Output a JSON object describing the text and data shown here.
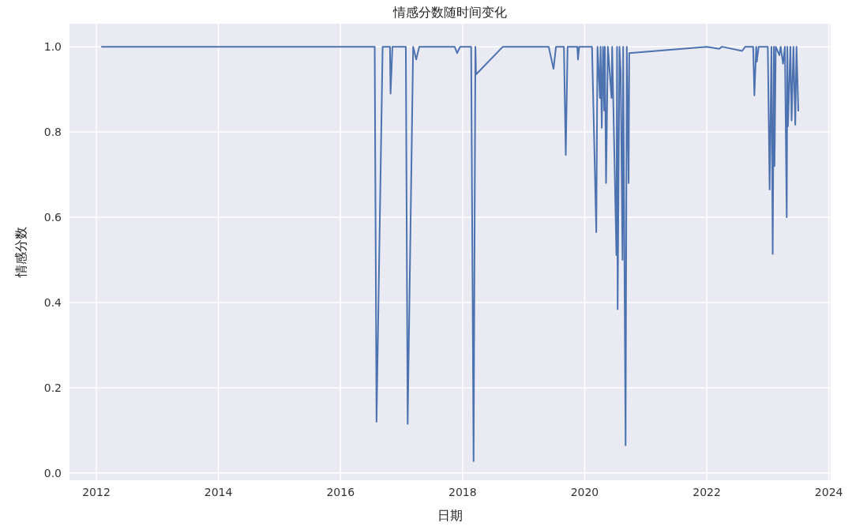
{
  "chart_data": {
    "type": "line",
    "title": "情感分数随时间变化",
    "xlabel": "日期",
    "ylabel": "情感分数",
    "x": [
      2012.09,
      2016.56,
      2016.59,
      2016.69,
      2016.81,
      2016.82,
      2016.85,
      2017.07,
      2017.1,
      2017.19,
      2017.24,
      2017.29,
      2017.87,
      2017.91,
      2017.96,
      2018.14,
      2018.18,
      2018.21,
      2018.22,
      2018.66,
      2019.41,
      2019.49,
      2019.53,
      2019.66,
      2019.69,
      2019.72,
      2019.88,
      2019.89,
      2019.91,
      2020.12,
      2020.19,
      2020.21,
      2020.25,
      2020.26,
      2020.28,
      2020.3,
      2020.32,
      2020.33,
      2020.35,
      2020.38,
      2020.44,
      2020.45,
      2020.52,
      2020.53,
      2020.54,
      2020.57,
      2020.59,
      2020.62,
      2020.63,
      2020.67,
      2020.69,
      2020.72,
      2020.73,
      2022.0,
      2022.2,
      2022.25,
      2022.58,
      2022.63,
      2022.76,
      2022.78,
      2022.81,
      2022.82,
      2022.85,
      2023.0,
      2023.03,
      2023.06,
      2023.08,
      2023.1,
      2023.11,
      2023.13,
      2023.19,
      2023.21,
      2023.25,
      2023.28,
      2023.31,
      2023.32,
      2023.33,
      2023.37,
      2023.39,
      2023.42,
      2023.45,
      2023.47,
      2023.5
    ],
    "series": [
      {
        "color": "#4c72b0",
        "values": [
          1.0,
          1.0,
          0.12,
          1.0,
          1.0,
          0.89,
          1.0,
          1.0,
          0.115,
          1.0,
          0.97,
          1.0,
          1.0,
          0.985,
          1.0,
          1.0,
          0.028,
          1.0,
          0.935,
          1.0,
          1.0,
          0.948,
          1.0,
          1.0,
          0.746,
          1.0,
          1.0,
          0.97,
          1.0,
          1.0,
          0.565,
          1.0,
          0.88,
          1.0,
          0.81,
          1.0,
          0.85,
          1.0,
          0.68,
          1.0,
          0.88,
          1.0,
          0.511,
          1.0,
          0.384,
          1.0,
          0.94,
          0.5,
          1.0,
          0.065,
          1.0,
          0.68,
          0.985,
          1.0,
          0.995,
          1.0,
          0.99,
          1.0,
          1.0,
          0.886,
          1.0,
          0.965,
          1.0,
          1.0,
          0.665,
          1.0,
          0.514,
          1.0,
          0.72,
          1.0,
          0.98,
          1.0,
          0.96,
          1.0,
          0.6,
          1.0,
          0.813,
          1.0,
          0.827,
          1.0,
          0.817,
          1.0,
          0.85
        ]
      }
    ],
    "xlim": [
      2011.56,
      2024.03
    ],
    "ylim": [
      -0.017,
      1.054
    ],
    "xticks": [
      2012,
      2014,
      2016,
      2018,
      2020,
      2022,
      2024
    ],
    "yticks": [
      {
        "value": 0,
        "label": "0.0"
      },
      {
        "value": 0.2,
        "label": "0.2"
      },
      {
        "value": 0.4,
        "label": "0.4"
      },
      {
        "value": 0.6,
        "label": "0.6"
      },
      {
        "value": 0.8,
        "label": "0.8"
      },
      {
        "value": 1,
        "label": "1.0"
      }
    ],
    "grid": true,
    "line_style": "solid",
    "marker": "none"
  }
}
